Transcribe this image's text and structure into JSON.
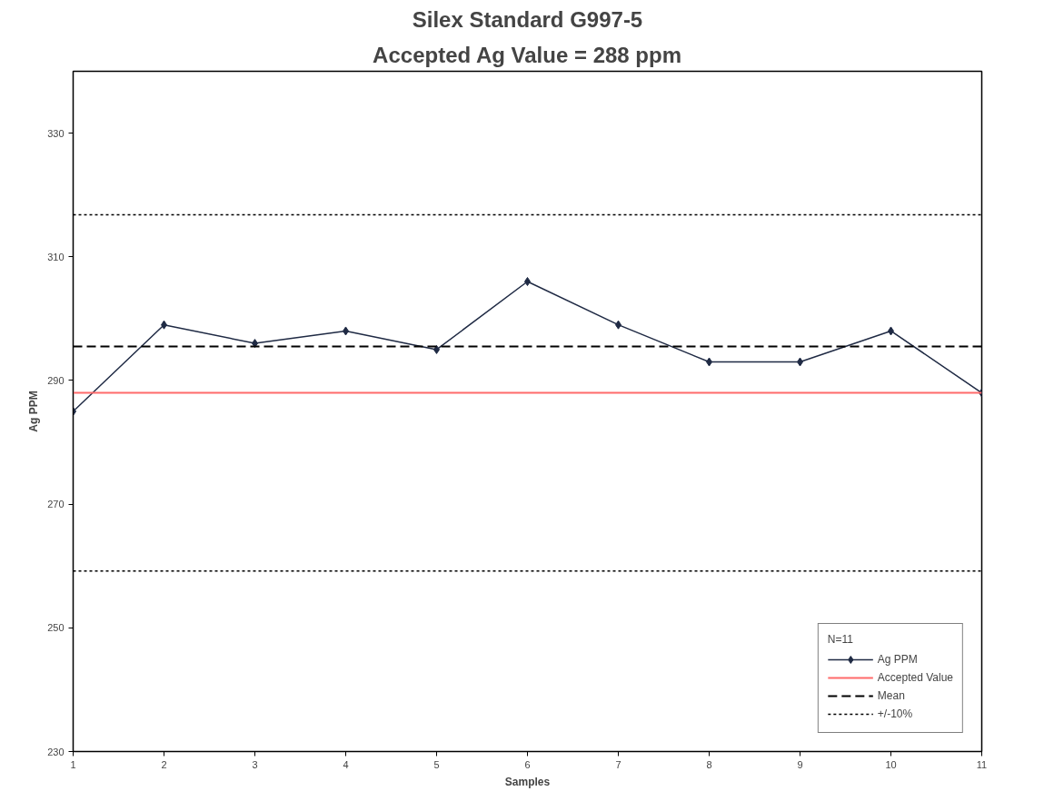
{
  "chart_data": {
    "type": "line",
    "title": "Silex Standard G997-5",
    "subtitle": "Accepted Ag Value = 288 ppm",
    "xlabel": "Samples",
    "ylabel": "Ag PPM",
    "legend_title": "N=11",
    "x": [
      1,
      2,
      3,
      4,
      5,
      6,
      7,
      8,
      9,
      10,
      11
    ],
    "series": [
      {
        "name": "Ag PPM",
        "color": "#1f2a44",
        "values": [
          285,
          299,
          296,
          298,
          295,
          306,
          299,
          293,
          293,
          298,
          288
        ]
      },
      {
        "name": "+/-10%",
        "type": "line",
        "color": "#000000",
        "values": [
          316.8,
          316.8,
          316.8,
          316.8,
          316.8,
          316.8,
          316.8,
          316.8,
          316.8,
          316.8,
          316.8
        ],
        "line_style": "dotted",
        "marker": "none"
      },
      {
        "type": "line",
        "color": "#000000",
        "values": [
          259.2,
          259.2,
          259.2,
          259.2,
          259.2,
          259.2,
          259.2,
          259.2,
          259.2,
          259.2,
          259.2
        ],
        "line_style": "dotted",
        "marker": "none"
      }
    ],
    "xlim": [
      1,
      11
    ],
    "xticks": [
      1,
      2,
      3,
      4,
      5,
      6,
      7,
      8,
      9,
      10,
      11
    ],
    "ylim": [
      230,
      340
    ],
    "yticks": [
      230,
      250,
      270,
      290,
      310,
      330
    ],
    "ref_lines": [
      {
        "axis": "y",
        "value": 288,
        "label": "Accepted Value",
        "color": "#ff6b6b",
        "line_style": "solid"
      },
      {
        "axis": "y",
        "value": 295.5,
        "label": "Mean",
        "color": "#000000",
        "line_style": "dashed"
      }
    ],
    "marker": "diamond",
    "line_style": "solid",
    "grid": false,
    "legend": "bottom right"
  }
}
